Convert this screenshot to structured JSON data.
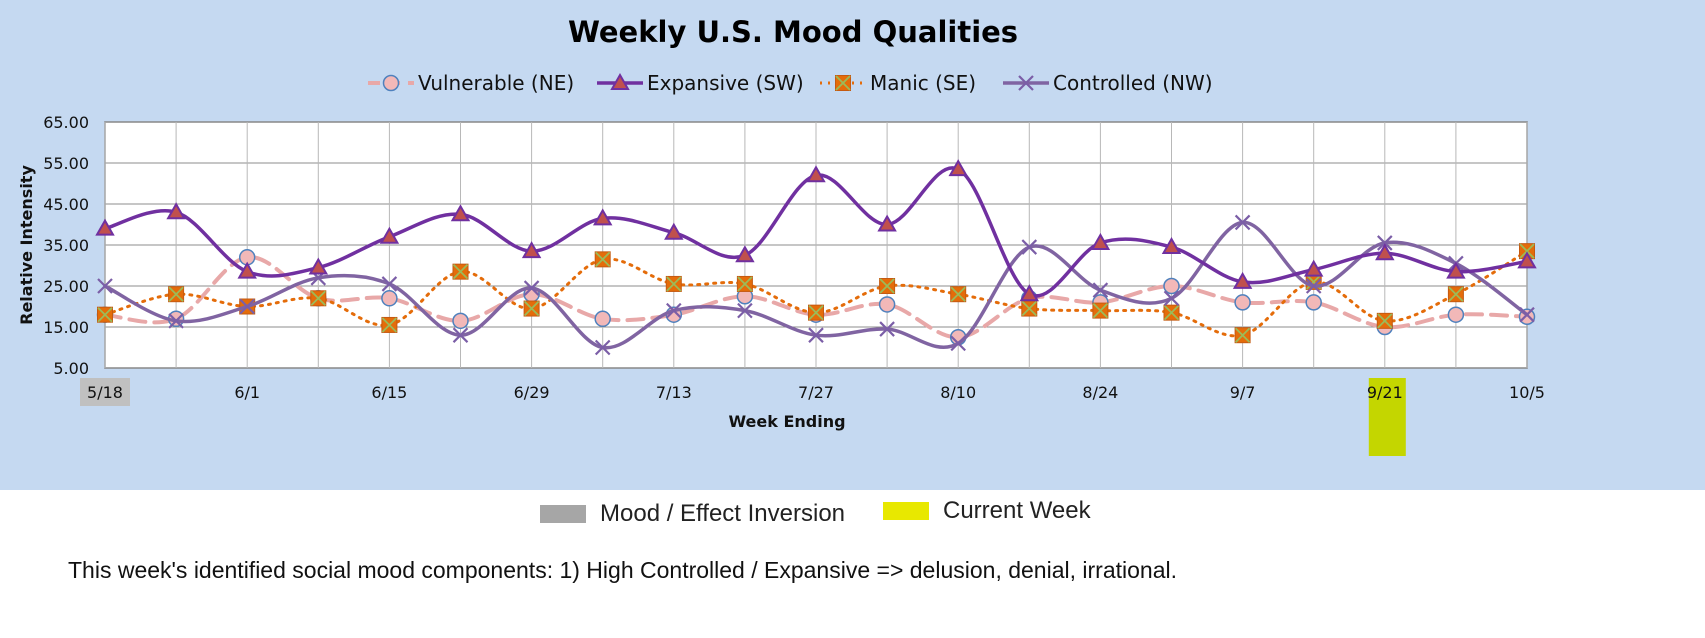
{
  "chart_data": {
    "type": "line",
    "title": "Weekly U.S. Mood Qualities",
    "xlabel": "Week Ending",
    "ylabel": "Relative Intensity",
    "ylim": [
      5,
      65
    ],
    "y_ticks": [
      "5.00",
      "15.00",
      "25.00",
      "35.00",
      "45.00",
      "55.00",
      "65.00"
    ],
    "x_tick_labels": [
      "5/18",
      "",
      "6/1",
      "",
      "6/15",
      "",
      "6/29",
      "",
      "7/13",
      "",
      "7/27",
      "",
      "8/10",
      "",
      "8/24",
      "",
      "9/7",
      "",
      "9/21",
      "",
      "10/5"
    ],
    "grid": true,
    "legend_position": "top",
    "inversion_week_index": 0,
    "current_week_index": 18,
    "series": [
      {
        "name": "Vulnerable (NE)",
        "color": "#e8a8a8",
        "marker": "circle",
        "values": [
          18,
          17,
          32,
          22,
          22,
          16.5,
          23,
          17,
          18,
          22.5,
          18,
          20.5,
          12.5,
          22,
          21,
          25,
          21,
          21,
          15,
          18,
          17.5
        ]
      },
      {
        "name": "Expansive (SW)",
        "color": "#7030a0",
        "marker": "triangle",
        "values": [
          39,
          43,
          28.5,
          29.5,
          37,
          42.5,
          33.5,
          41.5,
          38,
          32.5,
          52,
          40,
          53.5,
          23,
          35.5,
          34.5,
          26,
          29,
          33,
          28.5,
          31
        ]
      },
      {
        "name": "Manic (SE)",
        "color": "#e46c0a",
        "marker": "square-x",
        "values": [
          18,
          23,
          20,
          22,
          15.5,
          28.5,
          19.5,
          31.5,
          25.5,
          25.5,
          18.5,
          25,
          23,
          19.5,
          19,
          18.5,
          13,
          26,
          16.5,
          23,
          33.5
        ]
      },
      {
        "name": "Controlled (NW)",
        "color": "#8064a2",
        "marker": "x",
        "values": [
          25,
          16.5,
          20,
          27,
          25.5,
          13,
          24.5,
          10,
          19,
          19,
          13,
          14.5,
          11,
          34.5,
          24,
          22,
          40.5,
          25,
          35.5,
          30.5,
          18
        ]
      }
    ]
  },
  "bottom_legend": {
    "inversion_label": "Mood / Effect Inversion",
    "inversion_color": "#a6a6a6",
    "current_label": "Current Week",
    "current_color": "#e8e800"
  },
  "commentary": "This week's identified social mood components: 1) High Controlled / Expansive => delusion, denial, irrational.",
  "colors": {
    "background": "#c5d9f1",
    "plot_background": "#ffffff",
    "inversion_highlight": "#c0c0c0",
    "current_highlight": "#c4d600"
  }
}
